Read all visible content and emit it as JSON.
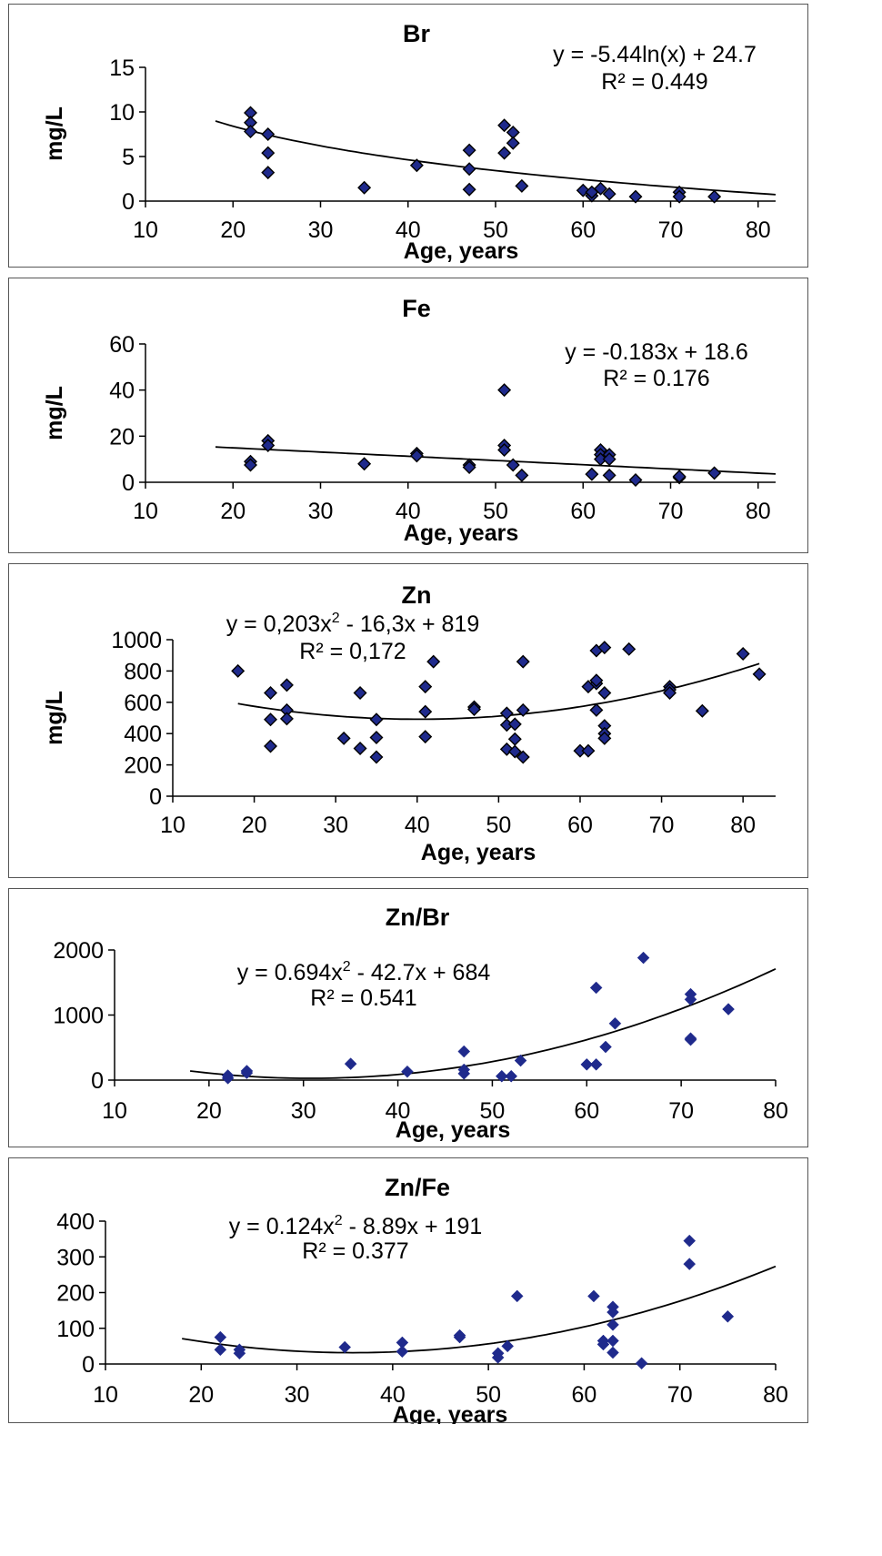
{
  "chart_data": [
    {
      "type": "scatter",
      "title": "Br",
      "xlabel": "Age, years",
      "ylabel": "mg/L",
      "xlim": [
        10,
        82
      ],
      "ylim": [
        0,
        15
      ],
      "xticks": [
        10,
        20,
        30,
        40,
        50,
        60,
        70,
        80
      ],
      "yticks": [
        0,
        5,
        10,
        15
      ],
      "marker": "diamond-outlined",
      "marker_color": "#1f2a8c",
      "trend": {
        "type": "log",
        "a": -5.44,
        "b": 24.7,
        "x_range": [
          18,
          82
        ]
      },
      "equation": [
        "y = -5.44ln(x) + 24.7",
        "R² = 0.449"
      ],
      "points": [
        [
          22,
          9.9
        ],
        [
          22,
          8.8
        ],
        [
          22,
          7.8
        ],
        [
          24,
          7.5
        ],
        [
          24,
          5.4
        ],
        [
          24,
          3.2
        ],
        [
          35,
          1.5
        ],
        [
          41,
          4.0
        ],
        [
          47,
          5.7
        ],
        [
          47,
          3.6
        ],
        [
          47,
          1.3
        ],
        [
          51,
          8.5
        ],
        [
          51,
          5.4
        ],
        [
          52,
          7.7
        ],
        [
          52,
          6.5
        ],
        [
          53,
          1.7
        ],
        [
          60,
          1.2
        ],
        [
          61,
          0.6
        ],
        [
          61,
          1.0
        ],
        [
          62,
          1.4
        ],
        [
          63,
          0.8
        ],
        [
          66,
          0.5
        ],
        [
          71,
          1.0
        ],
        [
          71,
          0.5
        ],
        [
          75,
          0.5
        ]
      ]
    },
    {
      "type": "scatter",
      "title": "Fe",
      "xlabel": "Age, years",
      "ylabel": "mg/L",
      "xlim": [
        10,
        82
      ],
      "ylim": [
        0,
        60
      ],
      "xticks": [
        10,
        20,
        30,
        40,
        50,
        60,
        70,
        80
      ],
      "yticks": [
        0,
        20,
        40,
        60
      ],
      "marker": "diamond-outlined",
      "marker_color": "#1f2a8c",
      "trend": {
        "type": "poly",
        "coef": [
          18.6,
          -0.183,
          0
        ],
        "x_range": [
          18,
          82
        ]
      },
      "equation": [
        "y = -0.183x + 18.6",
        "R² = 0.176"
      ],
      "points": [
        [
          22,
          9
        ],
        [
          22,
          7.5
        ],
        [
          24,
          18
        ],
        [
          24,
          16
        ],
        [
          35,
          8
        ],
        [
          41,
          12.5
        ],
        [
          41,
          11.5
        ],
        [
          47,
          7.5
        ],
        [
          47,
          6.5
        ],
        [
          51,
          40
        ],
        [
          51,
          16
        ],
        [
          51,
          14
        ],
        [
          52,
          7.5
        ],
        [
          53,
          3
        ],
        [
          61,
          3.5
        ],
        [
          62,
          14
        ],
        [
          62,
          12
        ],
        [
          62,
          10
        ],
        [
          63,
          12
        ],
        [
          63,
          10
        ],
        [
          63,
          3
        ],
        [
          66,
          1
        ],
        [
          71,
          2
        ],
        [
          71,
          2.5
        ],
        [
          75,
          4
        ]
      ]
    },
    {
      "type": "scatter",
      "title": "Zn",
      "xlabel": "Age, years",
      "ylabel": "mg/L",
      "xlim": [
        10,
        84
      ],
      "ylim": [
        0,
        1000
      ],
      "xticks": [
        10,
        20,
        30,
        40,
        50,
        60,
        70,
        80
      ],
      "yticks": [
        0,
        200,
        400,
        600,
        800,
        1000
      ],
      "marker": "diamond-outlined",
      "marker_color": "#1f2a8c",
      "trend": {
        "type": "poly",
        "coef": [
          819,
          -16.3,
          0.203
        ],
        "x_range": [
          18,
          82
        ]
      },
      "equation": [
        "y = 0,203x",
        "2",
        " - 16,3x + 819",
        "R² = 0,172"
      ],
      "points": [
        [
          18,
          800
        ],
        [
          22,
          660
        ],
        [
          22,
          490
        ],
        [
          22,
          320
        ],
        [
          24,
          710
        ],
        [
          24,
          550
        ],
        [
          24,
          495
        ],
        [
          31,
          370
        ],
        [
          33,
          660
        ],
        [
          33,
          305
        ],
        [
          35,
          490
        ],
        [
          35,
          375
        ],
        [
          35,
          250
        ],
        [
          41,
          700
        ],
        [
          41,
          540
        ],
        [
          41,
          380
        ],
        [
          42,
          860
        ],
        [
          47,
          570
        ],
        [
          47,
          555
        ],
        [
          51,
          530
        ],
        [
          51,
          455
        ],
        [
          51,
          300
        ],
        [
          52,
          460
        ],
        [
          52,
          365
        ],
        [
          52,
          285
        ],
        [
          53,
          860
        ],
        [
          53,
          550
        ],
        [
          53,
          250
        ],
        [
          60,
          290
        ],
        [
          61,
          290
        ],
        [
          61,
          700
        ],
        [
          62,
          720
        ],
        [
          62,
          740
        ],
        [
          62,
          930
        ],
        [
          62,
          550
        ],
        [
          63,
          950
        ],
        [
          63,
          660
        ],
        [
          63,
          450
        ],
        [
          63,
          400
        ],
        [
          63,
          370
        ],
        [
          66,
          940
        ],
        [
          71,
          700
        ],
        [
          71,
          680
        ],
        [
          71,
          660
        ],
        [
          75,
          545
        ],
        [
          80,
          910
        ],
        [
          82,
          780
        ]
      ]
    },
    {
      "type": "scatter",
      "title": "Zn/Br",
      "xlabel": "Age, years",
      "ylabel": "",
      "xlim": [
        10,
        80
      ],
      "ylim": [
        0,
        2000
      ],
      "xticks": [
        10,
        20,
        30,
        40,
        50,
        60,
        70,
        80
      ],
      "yticks": [
        0,
        1000,
        2000
      ],
      "marker": "diamond",
      "marker_color": "#1f2a8c",
      "trend": {
        "type": "poly",
        "coef": [
          684,
          -42.7,
          0.694
        ],
        "x_range": [
          18,
          80
        ]
      },
      "equation": [
        "y = 0.694x",
        "2",
        " - 42.7x + 684",
        "R² = 0.541"
      ],
      "points": [
        [
          22,
          70
        ],
        [
          22,
          30
        ],
        [
          24,
          140
        ],
        [
          24,
          110
        ],
        [
          35,
          250
        ],
        [
          41,
          130
        ],
        [
          47,
          440
        ],
        [
          47,
          160
        ],
        [
          47,
          100
        ],
        [
          51,
          60
        ],
        [
          52,
          60
        ],
        [
          53,
          300
        ],
        [
          60,
          240
        ],
        [
          61,
          1420
        ],
        [
          61,
          240
        ],
        [
          62,
          510
        ],
        [
          63,
          870
        ],
        [
          66,
          1880
        ],
        [
          71,
          1320
        ],
        [
          71,
          1240
        ],
        [
          71,
          640
        ],
        [
          71,
          620
        ],
        [
          75,
          1090
        ]
      ]
    },
    {
      "type": "scatter",
      "title": "Zn/Fe",
      "xlabel": "Age, years",
      "ylabel": "",
      "xlim": [
        10,
        80
      ],
      "ylim": [
        0,
        400
      ],
      "xticks": [
        10,
        20,
        30,
        40,
        50,
        60,
        70,
        80
      ],
      "yticks": [
        0,
        100,
        200,
        300,
        400
      ],
      "marker": "diamond",
      "marker_color": "#1f2a8c",
      "trend": {
        "type": "poly",
        "coef": [
          191,
          -8.89,
          0.124
        ],
        "x_range": [
          18,
          80
        ]
      },
      "equation": [
        "y = 0.124x",
        "2",
        " - 8.89x + 191",
        "R² = 0.377"
      ],
      "points": [
        [
          22,
          75
        ],
        [
          22,
          40
        ],
        [
          24,
          40
        ],
        [
          24,
          30
        ],
        [
          35,
          47
        ],
        [
          41,
          60
        ],
        [
          41,
          35
        ],
        [
          47,
          80
        ],
        [
          47,
          75
        ],
        [
          51,
          30
        ],
        [
          51,
          18
        ],
        [
          52,
          50
        ],
        [
          53,
          190
        ],
        [
          61,
          190
        ],
        [
          62,
          65
        ],
        [
          62,
          55
        ],
        [
          63,
          160
        ],
        [
          63,
          145
        ],
        [
          63,
          110
        ],
        [
          63,
          65
        ],
        [
          63,
          32
        ],
        [
          66,
          2
        ],
        [
          71,
          345
        ],
        [
          71,
          280
        ],
        [
          75,
          133
        ]
      ]
    }
  ]
}
